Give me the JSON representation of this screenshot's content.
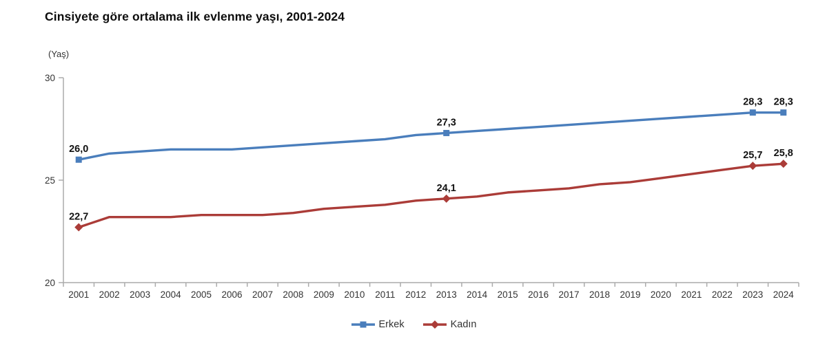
{
  "chart_data": {
    "type": "line",
    "title": "Cinsiyete göre ortalama ilk evlenme yaşı, 2001-2024",
    "y_axis_title": "(Yaş)",
    "ylim": [
      20,
      30
    ],
    "y_ticks": [
      30,
      25,
      20
    ],
    "grid": false,
    "legend_position": "bottom",
    "categories": [
      2001,
      2002,
      2003,
      2004,
      2005,
      2006,
      2007,
      2008,
      2009,
      2010,
      2011,
      2012,
      2013,
      2014,
      2015,
      2016,
      2017,
      2018,
      2019,
      2020,
      2021,
      2022,
      2023,
      2024
    ],
    "labeled_categories": [
      2001,
      2013,
      2023,
      2024
    ],
    "decimal_separator": ",",
    "series": [
      {
        "name": "Erkek",
        "color": "#4a7ebc",
        "marker": "square",
        "values": [
          26.0,
          26.3,
          26.4,
          26.5,
          26.5,
          26.5,
          26.6,
          26.7,
          26.8,
          26.9,
          27.0,
          27.2,
          27.3,
          27.4,
          27.5,
          27.6,
          27.7,
          27.8,
          27.9,
          28.0,
          28.1,
          28.2,
          28.3,
          28.3
        ],
        "point_labels": {
          "2001": "26,0",
          "2013": "27,3",
          "2023": "28,3",
          "2024": "28,3"
        }
      },
      {
        "name": "Kadın",
        "color": "#ab3c38",
        "marker": "diamond",
        "values": [
          22.7,
          23.2,
          23.2,
          23.2,
          23.3,
          23.3,
          23.3,
          23.4,
          23.6,
          23.7,
          23.8,
          24.0,
          24.1,
          24.2,
          24.4,
          24.5,
          24.6,
          24.8,
          24.9,
          25.1,
          25.3,
          25.5,
          25.7,
          25.8
        ],
        "point_labels": {
          "2001": "22,7",
          "2013": "24,1",
          "2023": "25,7",
          "2024": "25,8"
        }
      }
    ],
    "axis_color": "#ababab",
    "tick_label_color": "#333333",
    "data_label_color": "#111111"
  }
}
